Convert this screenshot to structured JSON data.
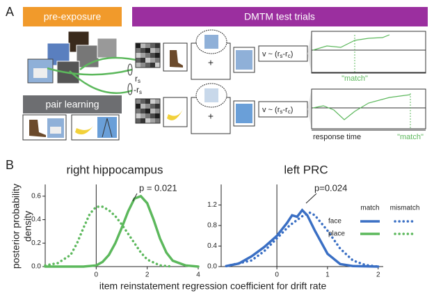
{
  "panels": [
    "A",
    "B"
  ],
  "diagram": {
    "pre_exposure": "pre-exposure",
    "test_trials": "DMTM test trials",
    "pair_learning": "pair learning",
    "similarity_pos": {
      "r": "r",
      "sub": "s"
    },
    "similarity_neg": {
      "r": "-r",
      "sub": "s"
    },
    "fixation": [
      "+",
      "+"
    ],
    "formula": {
      "prefix": "v ~ (r",
      "sub1": "s",
      "mid": "-r",
      "sub2": "c",
      "suffix": ")"
    },
    "match_labels": [
      "\"match\"",
      "\"match\""
    ],
    "response_time": "response time"
  },
  "figure": {
    "y_label": [
      "posterior probability",
      "density"
    ],
    "x_label": "item reinstatement regression coefficient for drift rate"
  },
  "chart_data": [
    {
      "type": "line",
      "title": "right hippocampus",
      "annotation": "p = 0.021",
      "xlim": [
        -2,
        4
      ],
      "xticks": [
        0,
        2,
        4
      ],
      "ylim": [
        0,
        0.7
      ],
      "yticks": [
        {
          "value": 0,
          "label": "0.0"
        },
        0.2,
        0.4,
        0.6
      ],
      "zero_line": true,
      "series": [
        {
          "color": "#5cb85c",
          "style": "solid",
          "x": [
            -2,
            -1,
            -0.5,
            0,
            0.25,
            0.5,
            0.75,
            1,
            1.25,
            1.5,
            1.75,
            2,
            2.25,
            2.5,
            2.75,
            3,
            3.5,
            4
          ],
          "values": [
            0,
            0,
            0,
            0.01,
            0.04,
            0.1,
            0.2,
            0.33,
            0.47,
            0.58,
            0.6,
            0.54,
            0.4,
            0.24,
            0.12,
            0.05,
            0.01,
            0
          ]
        },
        {
          "color": "#5cb85c",
          "style": "dotted",
          "x": [
            -2,
            -1.5,
            -1,
            -0.75,
            -0.5,
            -0.25,
            0,
            0.25,
            0.5,
            0.75,
            1,
            1.25,
            1.5,
            1.75,
            2,
            2.5,
            3
          ],
          "values": [
            0.01,
            0.03,
            0.1,
            0.2,
            0.33,
            0.45,
            0.51,
            0.51,
            0.48,
            0.43,
            0.36,
            0.28,
            0.2,
            0.12,
            0.06,
            0.01,
            0
          ]
        }
      ]
    },
    {
      "type": "line",
      "title": "left PRC",
      "annotation": "p=0.024",
      "xlim": [
        -1.1,
        2.1
      ],
      "xticks": [
        0,
        1,
        2
      ],
      "ylim": [
        0,
        1.6
      ],
      "yticks": [
        {
          "value": 0,
          "label": "0.0"
        },
        0.4,
        0.8,
        1.2
      ],
      "zero_line": true,
      "series": [
        {
          "color": "#3a6fc4",
          "style": "solid",
          "x": [
            -1,
            -0.75,
            -0.5,
            -0.25,
            0,
            0.2,
            0.3,
            0.4,
            0.5,
            0.6,
            0.75,
            1,
            1.25,
            1.5,
            2
          ],
          "values": [
            0.01,
            0.06,
            0.2,
            0.38,
            0.6,
            0.85,
            1.0,
            0.97,
            1.1,
            1.0,
            0.7,
            0.25,
            0.05,
            0.01,
            0
          ]
        },
        {
          "color": "#3a6fc4",
          "style": "dotted",
          "x": [
            -1,
            -0.5,
            -0.25,
            0,
            0.25,
            0.5,
            0.65,
            0.75,
            1,
            1.25,
            1.5,
            1.75,
            2
          ],
          "values": [
            0.01,
            0.12,
            0.3,
            0.55,
            0.8,
            0.98,
            1.05,
            1.0,
            0.7,
            0.35,
            0.12,
            0.03,
            0
          ]
        }
      ],
      "legend": {
        "columns": [
          "match",
          "mismatch"
        ],
        "rows": [
          {
            "label": "face",
            "color": "#3a6fc4"
          },
          {
            "label": "place",
            "color": "#5cb85c"
          }
        ]
      }
    }
  ]
}
